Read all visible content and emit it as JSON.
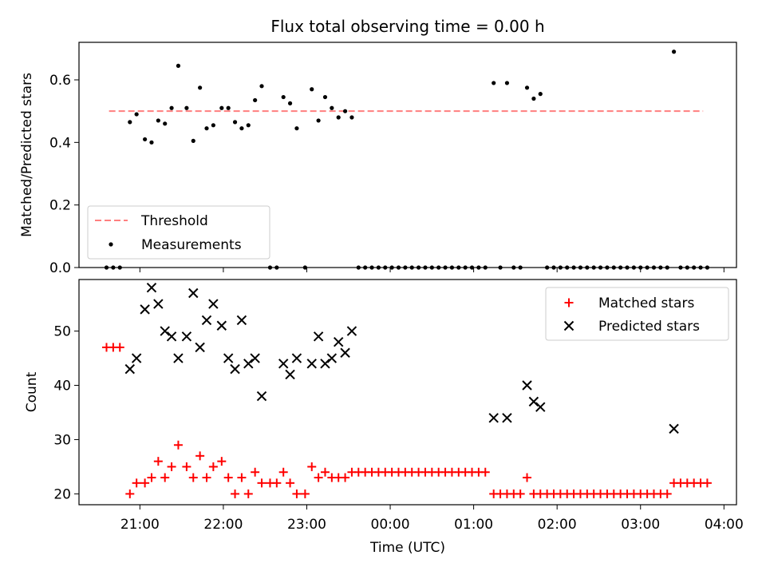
{
  "chart_data": [
    {
      "type": "scatter",
      "title": "Flux total observing time = 0.00 h",
      "xlabel": "",
      "ylabel": "Matched/Predicted stars",
      "ylim": [
        0,
        0.72
      ],
      "yticks": [
        "0.0",
        "0.2",
        "0.4",
        "0.6"
      ],
      "ytick_values": [
        0.0,
        0.2,
        0.4,
        0.6
      ],
      "legend": {
        "placement": "lower-left",
        "entries": [
          "Threshold",
          "Measurements"
        ]
      },
      "threshold": {
        "name": "Threshold",
        "value": 0.5,
        "x_start": 20.63,
        "x_end": 27.75,
        "color": "#ff7f7f"
      },
      "series": [
        {
          "name": "Measurements",
          "color": "#000000",
          "points": [
            [
              20.6,
              0
            ],
            [
              20.68,
              0
            ],
            [
              20.76,
              0
            ],
            [
              20.88,
              0.465
            ],
            [
              20.96,
              0.49
            ],
            [
              21.06,
              0.41
            ],
            [
              21.14,
              0.4
            ],
            [
              21.22,
              0.47
            ],
            [
              21.3,
              0.46
            ],
            [
              21.38,
              0.51
            ],
            [
              21.46,
              0.645
            ],
            [
              21.56,
              0.51
            ],
            [
              21.64,
              0.405
            ],
            [
              21.72,
              0.575
            ],
            [
              21.8,
              0.445
            ],
            [
              21.88,
              0.455
            ],
            [
              21.98,
              0.51
            ],
            [
              22.06,
              0.51
            ],
            [
              22.14,
              0.465
            ],
            [
              22.22,
              0.445
            ],
            [
              22.3,
              0.455
            ],
            [
              22.38,
              0.535
            ],
            [
              22.46,
              0.58
            ],
            [
              22.56,
              0
            ],
            [
              22.64,
              0
            ],
            [
              22.72,
              0.545
            ],
            [
              22.8,
              0.525
            ],
            [
              22.88,
              0.445
            ],
            [
              22.98,
              0
            ],
            [
              23.06,
              0.57
            ],
            [
              23.14,
              0.47
            ],
            [
              23.22,
              0.545
            ],
            [
              23.3,
              0.51
            ],
            [
              23.38,
              0.48
            ],
            [
              23.46,
              0.5
            ],
            [
              23.54,
              0.48
            ],
            [
              23.62,
              0
            ],
            [
              23.7,
              0
            ],
            [
              23.78,
              0
            ],
            [
              23.86,
              0
            ],
            [
              23.94,
              0
            ],
            [
              24.02,
              0
            ],
            [
              24.1,
              0
            ],
            [
              24.18,
              0
            ],
            [
              24.26,
              0
            ],
            [
              24.34,
              0
            ],
            [
              24.42,
              0
            ],
            [
              24.5,
              0
            ],
            [
              24.58,
              0
            ],
            [
              24.66,
              0
            ],
            [
              24.74,
              0
            ],
            [
              24.82,
              0
            ],
            [
              24.9,
              0
            ],
            [
              24.98,
              0
            ],
            [
              25.06,
              0
            ],
            [
              25.14,
              0
            ],
            [
              25.24,
              0.59
            ],
            [
              25.32,
              0
            ],
            [
              25.4,
              0.59
            ],
            [
              25.48,
              0
            ],
            [
              25.56,
              0
            ],
            [
              25.64,
              0.575
            ],
            [
              25.72,
              0.54
            ],
            [
              25.8,
              0.555
            ],
            [
              25.88,
              0
            ],
            [
              25.96,
              0
            ],
            [
              26.04,
              0
            ],
            [
              26.12,
              0
            ],
            [
              26.2,
              0
            ],
            [
              26.28,
              0
            ],
            [
              26.36,
              0
            ],
            [
              26.44,
              0
            ],
            [
              26.52,
              0
            ],
            [
              26.6,
              0
            ],
            [
              26.68,
              0
            ],
            [
              26.76,
              0
            ],
            [
              26.84,
              0
            ],
            [
              26.92,
              0
            ],
            [
              27.0,
              0
            ],
            [
              27.08,
              0
            ],
            [
              27.16,
              0
            ],
            [
              27.24,
              0
            ],
            [
              27.32,
              0
            ],
            [
              27.4,
              0.69
            ],
            [
              27.48,
              0
            ],
            [
              27.56,
              0
            ],
            [
              27.64,
              0
            ],
            [
              27.72,
              0
            ],
            [
              27.8,
              0
            ]
          ]
        }
      ]
    },
    {
      "type": "scatter",
      "title": "",
      "xlabel": "Time (UTC)",
      "ylabel": "Count",
      "xlim": [
        20.27,
        28.15
      ],
      "ylim": [
        18.0,
        59.5
      ],
      "xticks": [
        "21:00",
        "22:00",
        "23:00",
        "00:00",
        "01:00",
        "02:00",
        "03:00",
        "04:00"
      ],
      "xtick_values": [
        21,
        22,
        23,
        24,
        25,
        26,
        27,
        28
      ],
      "yticks": [
        "20",
        "30",
        "40",
        "50"
      ],
      "ytick_values": [
        20,
        30,
        40,
        50
      ],
      "legend": {
        "placement": "top-right",
        "entries": [
          "Matched stars",
          "Predicted stars"
        ]
      },
      "series": [
        {
          "name": "Matched stars",
          "marker": "plus",
          "color": "#ff0000",
          "points": [
            [
              20.6,
              47
            ],
            [
              20.68,
              47
            ],
            [
              20.76,
              47
            ],
            [
              20.88,
              20
            ],
            [
              20.96,
              22
            ],
            [
              21.06,
              22
            ],
            [
              21.14,
              23
            ],
            [
              21.22,
              26
            ],
            [
              21.3,
              23
            ],
            [
              21.38,
              25
            ],
            [
              21.46,
              29
            ],
            [
              21.56,
              25
            ],
            [
              21.64,
              23
            ],
            [
              21.72,
              27
            ],
            [
              21.8,
              23
            ],
            [
              21.88,
              25
            ],
            [
              21.98,
              26
            ],
            [
              22.06,
              23
            ],
            [
              22.14,
              20
            ],
            [
              22.22,
              23
            ],
            [
              22.3,
              20
            ],
            [
              22.38,
              24
            ],
            [
              22.46,
              22
            ],
            [
              22.56,
              22
            ],
            [
              22.64,
              22
            ],
            [
              22.72,
              24
            ],
            [
              22.8,
              22
            ],
            [
              22.88,
              20
            ],
            [
              22.98,
              20
            ],
            [
              23.06,
              25
            ],
            [
              23.14,
              23
            ],
            [
              23.22,
              24
            ],
            [
              23.3,
              23
            ],
            [
              23.38,
              23
            ],
            [
              23.46,
              23
            ],
            [
              23.54,
              24
            ],
            [
              23.62,
              24
            ],
            [
              23.7,
              24
            ],
            [
              23.78,
              24
            ],
            [
              23.86,
              24
            ],
            [
              23.94,
              24
            ],
            [
              24.02,
              24
            ],
            [
              24.1,
              24
            ],
            [
              24.18,
              24
            ],
            [
              24.26,
              24
            ],
            [
              24.34,
              24
            ],
            [
              24.42,
              24
            ],
            [
              24.5,
              24
            ],
            [
              24.58,
              24
            ],
            [
              24.66,
              24
            ],
            [
              24.74,
              24
            ],
            [
              24.82,
              24
            ],
            [
              24.9,
              24
            ],
            [
              24.98,
              24
            ],
            [
              25.06,
              24
            ],
            [
              25.14,
              24
            ],
            [
              25.24,
              20
            ],
            [
              25.32,
              20
            ],
            [
              25.4,
              20
            ],
            [
              25.48,
              20
            ],
            [
              25.56,
              20
            ],
            [
              25.64,
              23
            ],
            [
              25.72,
              20
            ],
            [
              25.8,
              20
            ],
            [
              25.88,
              20
            ],
            [
              25.96,
              20
            ],
            [
              26.04,
              20
            ],
            [
              26.12,
              20
            ],
            [
              26.2,
              20
            ],
            [
              26.28,
              20
            ],
            [
              26.36,
              20
            ],
            [
              26.44,
              20
            ],
            [
              26.52,
              20
            ],
            [
              26.6,
              20
            ],
            [
              26.68,
              20
            ],
            [
              26.76,
              20
            ],
            [
              26.84,
              20
            ],
            [
              26.92,
              20
            ],
            [
              27.0,
              20
            ],
            [
              27.08,
              20
            ],
            [
              27.16,
              20
            ],
            [
              27.24,
              20
            ],
            [
              27.32,
              20
            ],
            [
              27.4,
              22
            ],
            [
              27.48,
              22
            ],
            [
              27.56,
              22
            ],
            [
              27.64,
              22
            ],
            [
              27.72,
              22
            ],
            [
              27.8,
              22
            ]
          ]
        },
        {
          "name": "Predicted stars",
          "marker": "x",
          "color": "#000000",
          "points": [
            [
              20.88,
              43
            ],
            [
              20.96,
              45
            ],
            [
              21.06,
              54
            ],
            [
              21.14,
              58
            ],
            [
              21.22,
              55
            ],
            [
              21.3,
              50
            ],
            [
              21.38,
              49
            ],
            [
              21.46,
              45
            ],
            [
              21.56,
              49
            ],
            [
              21.64,
              57
            ],
            [
              21.72,
              47
            ],
            [
              21.8,
              52
            ],
            [
              21.88,
              55
            ],
            [
              21.98,
              51
            ],
            [
              22.06,
              45
            ],
            [
              22.14,
              43
            ],
            [
              22.22,
              52
            ],
            [
              22.3,
              44
            ],
            [
              22.38,
              45
            ],
            [
              22.46,
              38
            ],
            [
              22.72,
              44
            ],
            [
              22.8,
              42
            ],
            [
              22.88,
              45
            ],
            [
              23.06,
              44
            ],
            [
              23.14,
              49
            ],
            [
              23.22,
              44
            ],
            [
              23.3,
              45
            ],
            [
              23.38,
              48
            ],
            [
              23.46,
              46
            ],
            [
              23.54,
              50
            ],
            [
              25.24,
              34
            ],
            [
              25.4,
              34
            ],
            [
              25.64,
              40
            ],
            [
              25.72,
              37
            ],
            [
              25.8,
              36
            ],
            [
              27.4,
              32
            ]
          ]
        }
      ]
    }
  ]
}
